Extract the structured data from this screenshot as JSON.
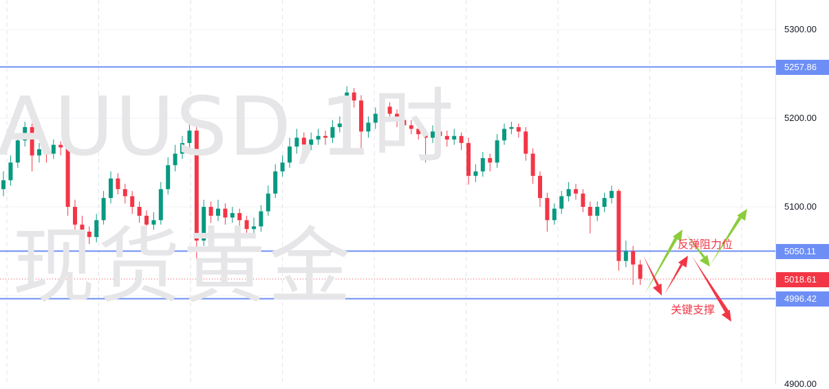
{
  "watermark": {
    "line1": "AUUSD,1时",
    "line2": "现货黄金"
  },
  "annotations": {
    "resistance": "反弹阻力位",
    "support": "关键支撑"
  },
  "colors": {
    "up": "#089981",
    "down": "#f23645",
    "level_line": "#6d8ff5",
    "last_price": "#f23645",
    "arrow_green": "#8ccc3c",
    "arrow_red": "#f23645"
  },
  "chart_data": {
    "type": "candlestick",
    "ylim": [
      4900,
      5330
    ],
    "y_ticks": [
      "5300.00",
      "5200.00",
      "5100.00",
      "4900.00"
    ],
    "y_tick_values": [
      5300,
      5200,
      5100,
      4900
    ],
    "grid": true,
    "levels": [
      {
        "value": 5257.86,
        "label": "5257.86"
      },
      {
        "value": 5050.11,
        "label": "5050.11"
      },
      {
        "value": 4996.42,
        "label": "4996.42"
      }
    ],
    "last_price": {
      "value": 5018.61,
      "label": "5018.61"
    },
    "ohlc": [
      [
        5120,
        5140,
        5112,
        5130
      ],
      [
        5130,
        5158,
        5124,
        5150
      ],
      [
        5150,
        5182,
        5144,
        5175
      ],
      [
        5175,
        5196,
        5168,
        5190
      ],
      [
        5190,
        5194,
        5140,
        5158
      ],
      [
        5158,
        5172,
        5150,
        5165
      ],
      [
        5165,
        5170,
        5150,
        5160
      ],
      [
        5160,
        5176,
        5154,
        5170
      ],
      [
        5170,
        5174,
        5158,
        5167
      ],
      [
        5167,
        5170,
        5090,
        5100
      ],
      [
        5100,
        5108,
        5070,
        5080
      ],
      [
        5080,
        5090,
        5062,
        5072
      ],
      [
        5072,
        5078,
        5058,
        5066
      ],
      [
        5066,
        5092,
        5060,
        5085
      ],
      [
        5085,
        5118,
        5080,
        5110
      ],
      [
        5110,
        5140,
        5104,
        5132
      ],
      [
        5132,
        5138,
        5114,
        5120
      ],
      [
        5120,
        5126,
        5104,
        5112
      ],
      [
        5112,
        5118,
        5092,
        5100
      ],
      [
        5100,
        5106,
        5082,
        5090
      ],
      [
        5090,
        5096,
        5070,
        5080
      ],
      [
        5080,
        5094,
        5074,
        5085
      ],
      [
        5085,
        5128,
        5080,
        5120
      ],
      [
        5120,
        5156,
        5114,
        5147
      ],
      [
        5147,
        5170,
        5140,
        5160
      ],
      [
        5160,
        5180,
        5154,
        5172
      ],
      [
        5172,
        5196,
        5166,
        5186
      ],
      [
        5186,
        5190,
        5040,
        5062
      ],
      [
        5062,
        5108,
        5056,
        5100
      ],
      [
        5100,
        5106,
        5082,
        5090
      ],
      [
        5090,
        5108,
        5084,
        5098
      ],
      [
        5098,
        5104,
        5080,
        5088
      ],
      [
        5088,
        5100,
        5082,
        5093
      ],
      [
        5093,
        5098,
        5076,
        5085
      ],
      [
        5085,
        5090,
        5066,
        5075
      ],
      [
        5075,
        5088,
        5068,
        5078
      ],
      [
        5078,
        5102,
        5072,
        5095
      ],
      [
        5095,
        5124,
        5090,
        5115
      ],
      [
        5115,
        5148,
        5110,
        5140
      ],
      [
        5140,
        5158,
        5134,
        5150
      ],
      [
        5150,
        5178,
        5144,
        5168
      ],
      [
        5168,
        5188,
        5160,
        5178
      ],
      [
        5178,
        5184,
        5162,
        5170
      ],
      [
        5170,
        5184,
        5164,
        5176
      ],
      [
        5176,
        5188,
        5170,
        5180
      ],
      [
        5180,
        5186,
        5170,
        5178
      ],
      [
        5178,
        5198,
        5172,
        5190
      ],
      [
        5190,
        5202,
        5184,
        5194
      ],
      [
        5194,
        5236,
        5188,
        5229
      ],
      [
        5229,
        5234,
        5212,
        5220
      ],
      [
        5220,
        5226,
        5165,
        5185
      ],
      [
        5185,
        5202,
        5178,
        5195
      ],
      [
        5195,
        5212,
        5188,
        5205
      ],
      [
        5205,
        5220,
        5198,
        5213
      ],
      [
        5213,
        5218,
        5198,
        5205
      ],
      [
        5205,
        5210,
        5190,
        5198
      ],
      [
        5198,
        5204,
        5186,
        5192
      ],
      [
        5192,
        5198,
        5182,
        5188
      ],
      [
        5188,
        5194,
        5176,
        5182
      ],
      [
        5182,
        5188,
        5150,
        5178
      ],
      [
        5178,
        5192,
        5172,
        5185
      ],
      [
        5185,
        5190,
        5174,
        5180
      ],
      [
        5180,
        5186,
        5168,
        5176
      ],
      [
        5176,
        5188,
        5170,
        5180
      ],
      [
        5180,
        5184,
        5164,
        5172
      ],
      [
        5172,
        5178,
        5125,
        5135
      ],
      [
        5135,
        5148,
        5128,
        5140
      ],
      [
        5140,
        5162,
        5134,
        5155
      ],
      [
        5155,
        5160,
        5140,
        5150
      ],
      [
        5150,
        5182,
        5144,
        5175
      ],
      [
        5175,
        5194,
        5170,
        5188
      ],
      [
        5188,
        5196,
        5182,
        5190
      ],
      [
        5190,
        5194,
        5178,
        5185
      ],
      [
        5185,
        5190,
        5152,
        5160
      ],
      [
        5160,
        5166,
        5126,
        5135
      ],
      [
        5135,
        5140,
        5100,
        5110
      ],
      [
        5110,
        5116,
        5072,
        5085
      ],
      [
        5085,
        5104,
        5080,
        5098
      ],
      [
        5098,
        5118,
        5092,
        5112
      ],
      [
        5112,
        5128,
        5106,
        5120
      ],
      [
        5120,
        5126,
        5108,
        5115
      ],
      [
        5115,
        5120,
        5094,
        5100
      ],
      [
        5100,
        5106,
        5070,
        5090
      ],
      [
        5090,
        5106,
        5084,
        5100
      ],
      [
        5100,
        5116,
        5094,
        5110
      ],
      [
        5110,
        5124,
        5104,
        5118
      ],
      [
        5118,
        5120,
        5028,
        5039
      ],
      [
        5039,
        5062,
        5032,
        5050
      ],
      [
        5050,
        5056,
        5012,
        5035
      ],
      [
        5035,
        5040,
        5012,
        5019
      ]
    ]
  }
}
